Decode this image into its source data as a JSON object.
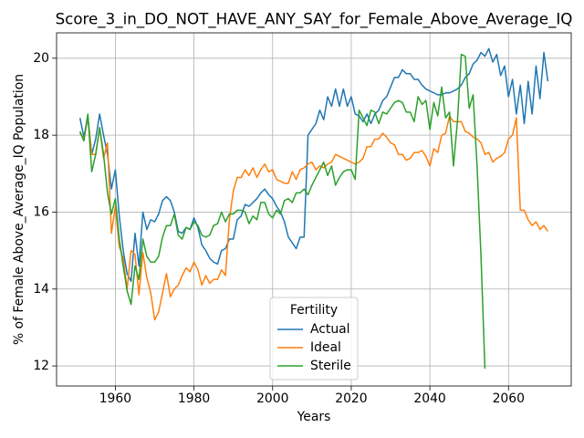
{
  "chart_data": {
    "type": "line",
    "title": "Score_3_in_DO_NOT_HAVE_ANY_SAY_for_Female_Above_Average_IQ",
    "xlabel": "Years",
    "ylabel": "% of Female Above_Average_IQ Population",
    "legend_title": "Fertility",
    "legend": "lower center",
    "grid": true,
    "xlim": [
      1945.05,
      2075.95
    ],
    "xticks": [
      1960,
      1980,
      2000,
      2020,
      2040,
      2060
    ],
    "ylim": [
      11.48,
      20.66
    ],
    "yticks": [
      12,
      14,
      16,
      18,
      20
    ],
    "x": [
      1951,
      1952,
      1953,
      1954,
      1955,
      1956,
      1957,
      1958,
      1959,
      1960,
      1961,
      1962,
      1963,
      1964,
      1965,
      1966,
      1967,
      1968,
      1969,
      1970,
      1971,
      1972,
      1973,
      1974,
      1975,
      1976,
      1977,
      1978,
      1979,
      1980,
      1981,
      1982,
      1983,
      1984,
      1985,
      1986,
      1987,
      1988,
      1989,
      1990,
      1991,
      1992,
      1993,
      1994,
      1995,
      1996,
      1997,
      1998,
      1999,
      2000,
      2001,
      2002,
      2003,
      2004,
      2005,
      2006,
      2007,
      2008,
      2009,
      2010,
      2011,
      2012,
      2013,
      2014,
      2015,
      2016,
      2017,
      2018,
      2019,
      2020,
      2021,
      2022,
      2023,
      2024,
      2025,
      2026,
      2027,
      2028,
      2029,
      2030,
      2031,
      2032,
      2033,
      2034,
      2035,
      2036,
      2037,
      2038,
      2039,
      2040,
      2041,
      2042,
      2043,
      2044,
      2045,
      2046,
      2047,
      2048,
      2049,
      2050,
      2051,
      2052,
      2053,
      2054,
      2055,
      2056,
      2057,
      2058,
      2059,
      2060,
      2061,
      2062,
      2063,
      2064,
      2065,
      2066,
      2067,
      2068,
      2069,
      2070
    ],
    "series": [
      {
        "name": "Actual",
        "color": "#1f77b4",
        "values": [
          18.45,
          17.95,
          18.5,
          17.5,
          17.9,
          18.55,
          18.0,
          17.5,
          16.6,
          17.1,
          15.9,
          15.0,
          14.4,
          14.2,
          15.45,
          14.6,
          16.0,
          15.55,
          15.8,
          15.75,
          15.95,
          16.3,
          16.4,
          16.3,
          16.0,
          15.5,
          15.45,
          15.6,
          15.55,
          15.85,
          15.6,
          15.15,
          15.0,
          14.8,
          14.7,
          14.65,
          15.0,
          15.05,
          15.3,
          15.3,
          15.8,
          15.9,
          16.2,
          16.15,
          16.25,
          16.35,
          16.5,
          16.6,
          16.45,
          16.35,
          16.15,
          16.0,
          15.75,
          15.35,
          15.2,
          15.05,
          15.35,
          15.35,
          18.0,
          18.15,
          18.3,
          18.65,
          18.4,
          19.0,
          18.75,
          19.2,
          18.75,
          19.2,
          18.75,
          19.0,
          18.55,
          18.5,
          18.35,
          18.55,
          18.3,
          18.55,
          18.65,
          18.9,
          19.0,
          19.25,
          19.5,
          19.5,
          19.7,
          19.6,
          19.6,
          19.45,
          19.45,
          19.3,
          19.2,
          19.15,
          19.1,
          19.05,
          19.05,
          19.1,
          19.1,
          19.15,
          19.2,
          19.3,
          19.5,
          19.6,
          19.85,
          19.95,
          20.15,
          20.05,
          20.25,
          19.9,
          20.1,
          19.55,
          19.8,
          19.0,
          19.45,
          18.55,
          19.3,
          18.3,
          19.4,
          18.55,
          19.8,
          18.95,
          20.15,
          19.4
        ]
      },
      {
        "name": "Ideal",
        "color": "#ff7f0e",
        "values": [
          18.05,
          17.9,
          18.45,
          17.5,
          17.5,
          18.2,
          17.4,
          17.8,
          15.45,
          16.15,
          15.1,
          14.8,
          14.0,
          15.0,
          14.9,
          13.85,
          14.95,
          14.3,
          13.9,
          13.2,
          13.4,
          13.9,
          14.4,
          13.8,
          14.0,
          14.1,
          14.35,
          14.55,
          14.45,
          14.7,
          14.5,
          14.1,
          14.35,
          14.15,
          14.25,
          14.25,
          14.5,
          14.35,
          15.8,
          16.55,
          16.9,
          16.9,
          17.1,
          16.95,
          17.15,
          16.9,
          17.1,
          17.25,
          17.05,
          17.1,
          16.85,
          16.8,
          16.75,
          16.75,
          17.05,
          16.85,
          17.1,
          17.15,
          17.25,
          17.3,
          17.1,
          17.2,
          17.15,
          17.25,
          17.3,
          17.5,
          17.45,
          17.4,
          17.35,
          17.3,
          17.25,
          17.3,
          17.4,
          17.7,
          17.7,
          17.9,
          17.9,
          18.05,
          17.95,
          17.8,
          17.75,
          17.5,
          17.5,
          17.35,
          17.4,
          17.55,
          17.55,
          17.6,
          17.45,
          17.2,
          17.65,
          17.55,
          18.0,
          18.05,
          18.5,
          18.35,
          18.35,
          18.35,
          18.1,
          18.05,
          17.95,
          17.9,
          17.8,
          17.5,
          17.55,
          17.3,
          17.4,
          17.45,
          17.55,
          17.9,
          18.0,
          18.45,
          16.05,
          16.05,
          15.8,
          15.65,
          15.75,
          15.55,
          15.65,
          15.5
        ]
      },
      {
        "name": "Sterile",
        "color": "#2ca02c",
        "values": [
          18.1,
          17.85,
          18.55,
          17.05,
          17.5,
          18.2,
          17.5,
          16.5,
          15.95,
          16.35,
          15.3,
          14.6,
          13.95,
          13.6,
          14.6,
          14.25,
          15.3,
          14.85,
          14.7,
          14.7,
          14.85,
          15.35,
          15.65,
          15.65,
          15.95,
          15.4,
          15.3,
          15.6,
          15.55,
          15.75,
          15.65,
          15.4,
          15.35,
          15.4,
          15.65,
          15.7,
          16.0,
          15.75,
          15.95,
          15.95,
          16.05,
          16.05,
          16.0,
          15.7,
          15.9,
          15.8,
          16.25,
          16.25,
          15.95,
          15.85,
          16.05,
          15.95,
          16.3,
          16.35,
          16.25,
          16.5,
          16.5,
          16.6,
          16.45,
          16.7,
          16.9,
          17.1,
          17.3,
          16.95,
          17.2,
          16.7,
          16.9,
          17.05,
          17.1,
          17.1,
          16.85,
          18.65,
          18.45,
          18.25,
          18.65,
          18.6,
          18.3,
          18.6,
          18.55,
          18.7,
          18.85,
          18.9,
          18.85,
          18.6,
          18.6,
          18.35,
          19.0,
          18.8,
          18.9,
          18.15,
          18.85,
          18.5,
          19.25,
          18.45,
          18.6,
          17.2,
          18.35,
          20.1,
          20.05,
          18.7,
          19.05,
          17.2,
          14.85,
          11.93,
          null,
          null,
          null,
          null,
          null,
          null,
          null,
          null,
          null,
          null,
          null,
          null,
          null,
          null,
          null,
          null
        ]
      }
    ]
  }
}
